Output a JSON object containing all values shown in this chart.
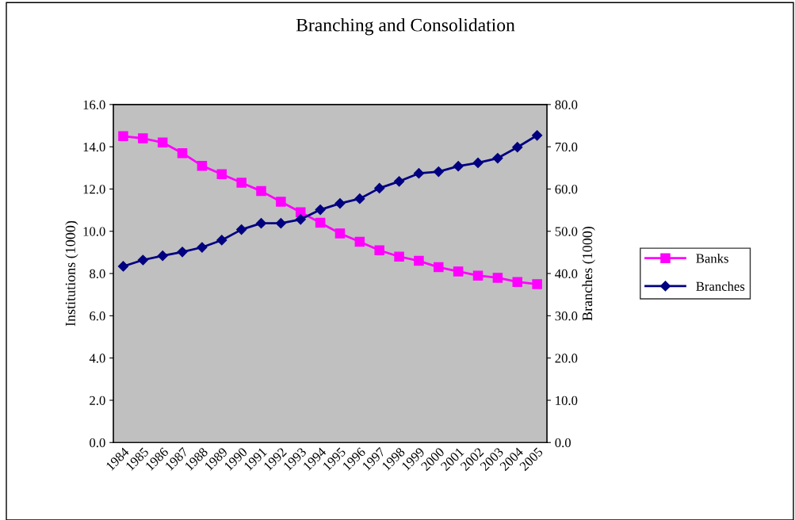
{
  "chart_data": {
    "type": "line",
    "title": "Branching and Consolidation",
    "ylabel": "Institutions (1000)",
    "y2label": "Branches (1000)",
    "categories": [
      "1984",
      "1985",
      "1986",
      "1987",
      "1988",
      "1989",
      "1990",
      "1991",
      "1992",
      "1993",
      "1994",
      "1995",
      "1996",
      "1997",
      "1998",
      "1999",
      "2000",
      "2001",
      "2002",
      "2003",
      "2004",
      "2005"
    ],
    "series": [
      {
        "name": "Banks",
        "color": "#ff00ff",
        "marker": "square",
        "values": [
          14.5,
          14.4,
          14.2,
          13.7,
          13.1,
          12.7,
          12.3,
          11.9,
          11.4,
          10.9,
          10.4,
          9.9,
          9.5,
          9.1,
          8.8,
          8.6,
          8.3,
          8.1,
          7.9,
          7.8,
          7.6,
          7.5
        ]
      },
      {
        "name": "Branches",
        "color": "#000080",
        "marker": "diamond",
        "axis": "y2",
        "values": [
          41.7,
          43.2,
          44.2,
          45.1,
          46.2,
          47.9,
          50.4,
          51.9,
          51.9,
          52.8,
          55.1,
          56.6,
          57.7,
          60.2,
          61.8,
          63.7,
          64.1,
          65.4,
          66.2,
          67.3,
          69.9,
          72.7
        ]
      }
    ],
    "ylim": [
      0,
      16
    ],
    "yticks": [
      {
        "value": 0,
        "label": "0.0"
      },
      {
        "value": 2,
        "label": "2.0"
      },
      {
        "value": 4,
        "label": "4.0"
      },
      {
        "value": 6,
        "label": "6.0"
      },
      {
        "value": 8,
        "label": "8.0"
      },
      {
        "value": 10,
        "label": "10.0"
      },
      {
        "value": 12,
        "label": "12.0"
      },
      {
        "value": 14,
        "label": "14.0"
      },
      {
        "value": 16,
        "label": "16.0"
      }
    ],
    "y2lim": [
      0,
      80
    ],
    "y2ticks": [
      {
        "value": 0,
        "label": "0.0"
      },
      {
        "value": 10,
        "label": "10.0"
      },
      {
        "value": 20,
        "label": "20.0"
      },
      {
        "value": 30,
        "label": "30.0"
      },
      {
        "value": 40,
        "label": "40.0"
      },
      {
        "value": 50,
        "label": "50.0"
      },
      {
        "value": 60,
        "label": "60.0"
      },
      {
        "value": 70,
        "label": "70.0"
      },
      {
        "value": 80,
        "label": "80.0"
      }
    ],
    "grid": false,
    "legend": "right",
    "line_style": "solid"
  }
}
